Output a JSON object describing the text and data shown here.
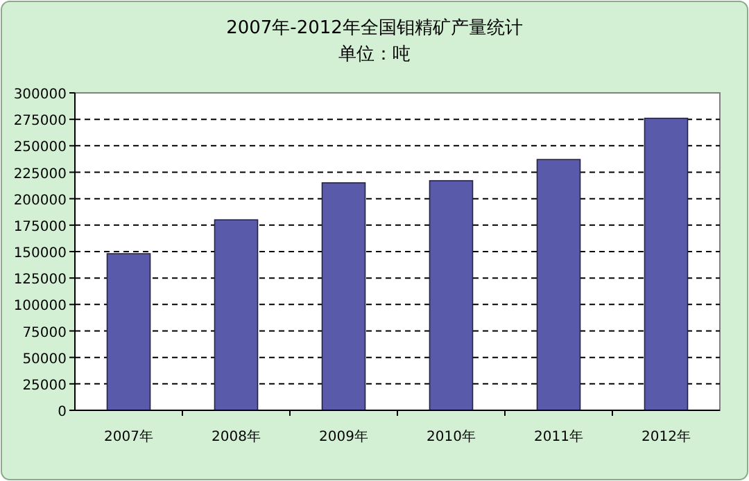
{
  "chart_data": {
    "type": "bar",
    "title": "2007年-2012年全国钼精矿产量统计",
    "subtitle": "单位：吨",
    "categories": [
      "2007年",
      "2008年",
      "2009年",
      "2010年",
      "2011年",
      "2012年"
    ],
    "values": [
      148000,
      180000,
      215000,
      217000,
      237000,
      276000
    ],
    "color": "#5a5aaa",
    "ylim": [
      0,
      300000
    ],
    "yticks": [
      0,
      25000,
      50000,
      75000,
      100000,
      125000,
      150000,
      175000,
      200000,
      225000,
      250000,
      275000,
      300000
    ],
    "grid": "y"
  }
}
